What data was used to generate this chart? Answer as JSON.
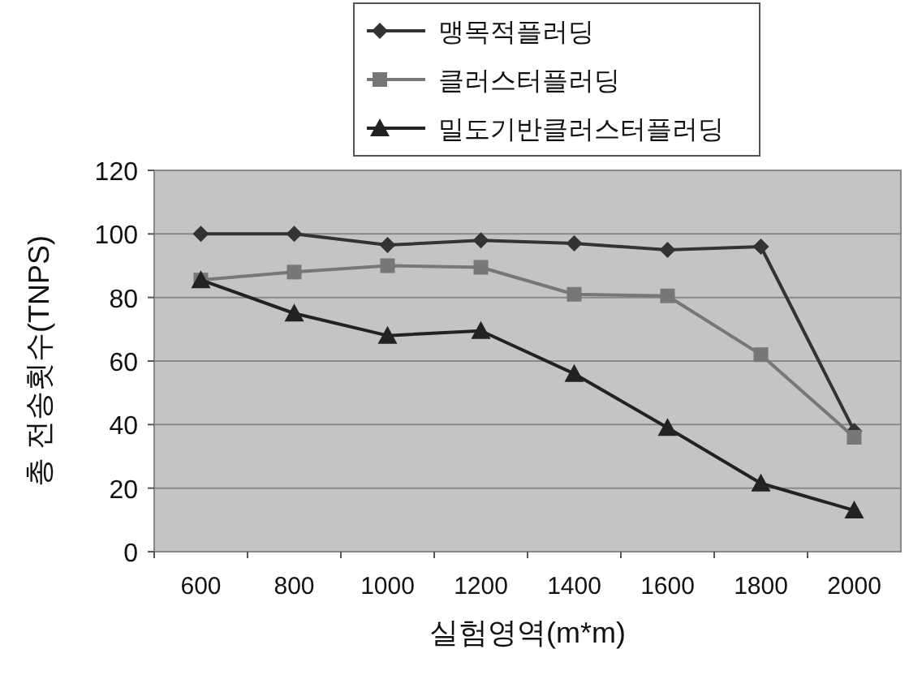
{
  "chart_data": {
    "type": "line",
    "xlabel": "실험영역(m*m)",
    "ylabel": "총 전송횟수(TNPS)",
    "categories": [
      "600",
      "800",
      "1000",
      "1200",
      "1400",
      "1600",
      "1800",
      "2000"
    ],
    "series": [
      {
        "name": "맹목적플러딩",
        "color": "#333333",
        "marker": "diamond",
        "values": [
          100,
          100,
          96.5,
          98,
          97,
          95,
          96,
          38
        ]
      },
      {
        "name": "클러스터플러딩",
        "color": "#777777",
        "marker": "square",
        "values": [
          85.5,
          88,
          90,
          89.5,
          81,
          80.5,
          62,
          36
        ]
      },
      {
        "name": "밀도기반클러스터플러딩",
        "color": "#222222",
        "marker": "triangle",
        "values": [
          85.5,
          75,
          68,
          69.5,
          56,
          39,
          21.5,
          13
        ]
      }
    ],
    "ylim": [
      0,
      120
    ],
    "yticks": [
      0,
      20,
      40,
      60,
      80,
      100,
      120
    ],
    "grid": "y",
    "legend": "top"
  }
}
